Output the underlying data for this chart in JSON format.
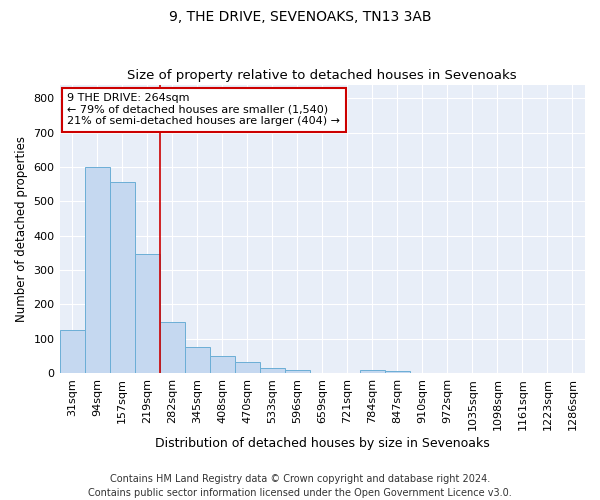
{
  "title": "9, THE DRIVE, SEVENOAKS, TN13 3AB",
  "subtitle": "Size of property relative to detached houses in Sevenoaks",
  "xlabel": "Distribution of detached houses by size in Sevenoaks",
  "ylabel": "Number of detached properties",
  "bar_labels": [
    "31sqm",
    "94sqm",
    "157sqm",
    "219sqm",
    "282sqm",
    "345sqm",
    "408sqm",
    "470sqm",
    "533sqm",
    "596sqm",
    "659sqm",
    "721sqm",
    "784sqm",
    "847sqm",
    "910sqm",
    "972sqm",
    "1035sqm",
    "1098sqm",
    "1161sqm",
    "1223sqm",
    "1286sqm"
  ],
  "bar_values": [
    125,
    601,
    557,
    347,
    148,
    75,
    50,
    33,
    15,
    10,
    0,
    0,
    10,
    5,
    0,
    0,
    0,
    0,
    0,
    0,
    0
  ],
  "bar_color": "#c5d8f0",
  "bar_edge_color": "#6baed6",
  "annotation_line1": "9 THE DRIVE: 264sqm",
  "annotation_line2": "← 79% of detached houses are smaller (1,540)",
  "annotation_line3": "21% of semi-detached houses are larger (404) →",
  "vline_position": 3.5,
  "vline_color": "#cc0000",
  "annotation_box_color": "#cc0000",
  "ylim": [
    0,
    840
  ],
  "yticks": [
    0,
    100,
    200,
    300,
    400,
    500,
    600,
    700,
    800
  ],
  "footer": "Contains HM Land Registry data © Crown copyright and database right 2024.\nContains public sector information licensed under the Open Government Licence v3.0.",
  "title_fontsize": 10,
  "subtitle_fontsize": 9.5,
  "xlabel_fontsize": 9,
  "ylabel_fontsize": 8.5,
  "tick_fontsize": 8,
  "annotation_fontsize": 8,
  "footer_fontsize": 7
}
